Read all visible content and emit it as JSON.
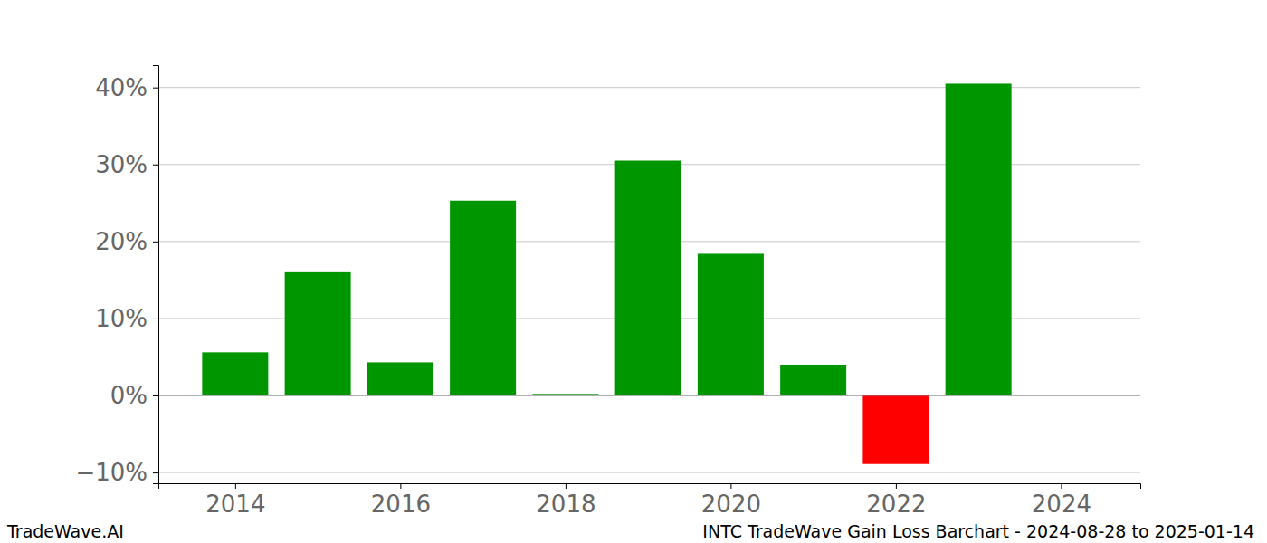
{
  "chart_data": {
    "type": "bar",
    "title": "INTC TradeWave Gain Loss Barchart - 2024-08-28 to 2025-01-14",
    "annotations": [
      "TradeWave.AI"
    ],
    "x": [
      2014,
      2015,
      2016,
      2017,
      2018,
      2019,
      2020,
      2021,
      2022,
      2023
    ],
    "values": [
      5.6,
      16.0,
      4.3,
      25.3,
      0.2,
      30.5,
      18.4,
      4.0,
      -8.9,
      40.5
    ],
    "colors": [
      "#009600",
      "#009600",
      "#009600",
      "#009600",
      "#009600",
      "#009600",
      "#009600",
      "#009600",
      "#ff0000",
      "#009600"
    ],
    "xlim": [
      2013.07,
      2024.96
    ],
    "xticks": [
      2014,
      2016,
      2018,
      2020,
      2022,
      2024
    ],
    "ylim": [
      -11.4,
      42.9
    ],
    "yticks": [
      {
        "value": -10,
        "label": "−10%"
      },
      {
        "value": 0,
        "label": "0%"
      },
      {
        "value": 10,
        "label": "10%"
      },
      {
        "value": 20,
        "label": "20%"
      },
      {
        "value": 30,
        "label": "30%"
      },
      {
        "value": 40,
        "label": "40%"
      }
    ],
    "grid": true
  }
}
